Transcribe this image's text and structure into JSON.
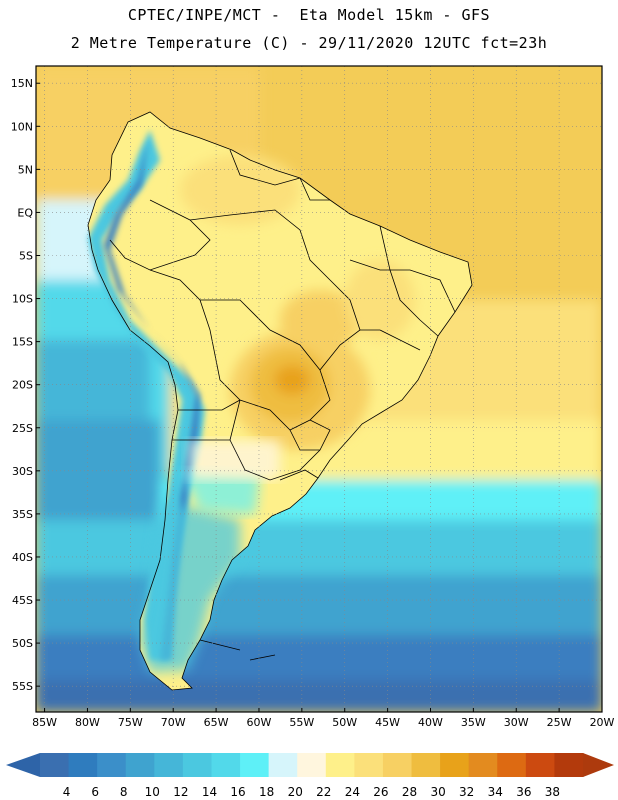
{
  "title": {
    "line1": "CPTEC/INPE/MCT -  Eta Model 15km - GFS",
    "line2": "2 Metre Temperature (C) - 29/11/2020 12UTC fct=23h"
  },
  "axes": {
    "lat_labels": [
      "15N",
      "10N",
      "5N",
      "EQ",
      "5S",
      "10S",
      "15S",
      "20S",
      "25S",
      "30S",
      "35S",
      "40S",
      "45S",
      "50S",
      "55S"
    ],
    "lat_values": [
      15,
      10,
      5,
      0,
      -5,
      -10,
      -15,
      -20,
      -25,
      -30,
      -35,
      -40,
      -45,
      -50,
      -55
    ],
    "lon_labels": [
      "85W",
      "80W",
      "75W",
      "70W",
      "65W",
      "60W",
      "55W",
      "50W",
      "45W",
      "40W",
      "35W",
      "30W",
      "25W",
      "20W"
    ],
    "lon_values": [
      -85,
      -80,
      -75,
      -70,
      -65,
      -60,
      -55,
      -50,
      -45,
      -40,
      -35,
      -30,
      -25,
      -20
    ],
    "lat_range": [
      -58,
      17
    ],
    "lon_range": [
      -86,
      -20
    ]
  },
  "colorbar": {
    "labels": [
      "4",
      "6",
      "8",
      "10",
      "12",
      "14",
      "16",
      "18",
      "20",
      "22",
      "24",
      "26",
      "28",
      "30",
      "32",
      "34",
      "36",
      "38"
    ],
    "colors": [
      "#3a6fb0",
      "#2f7cbe",
      "#3b8fc9",
      "#3fa3cf",
      "#45b6d8",
      "#4bc8e0",
      "#52d9ea",
      "#5ef0f7",
      "#d6f5fb",
      "#fff6de",
      "#fef08a",
      "#fbe07a",
      "#f7d063",
      "#efbd3f",
      "#e8a21a",
      "#e38b1f",
      "#dd6a12",
      "#cc4a10",
      "#b33a0c"
    ],
    "left_arrow_color": "#2e64a8",
    "right_arrow_color": "#ad3a0d"
  },
  "palette": {
    "ocean_deep": "#3d75b8",
    "ocean_mid": "#3c9cd0",
    "ocean_cyan": "#4bc8e0",
    "ocean_light": "#d6f5fb",
    "land_main": "#fef08a",
    "land_warm": "#f7d063",
    "land_hot": "#e8a21a",
    "andes_cold": "#5ab7dc",
    "atlantic_warm": "#f3cc57"
  }
}
